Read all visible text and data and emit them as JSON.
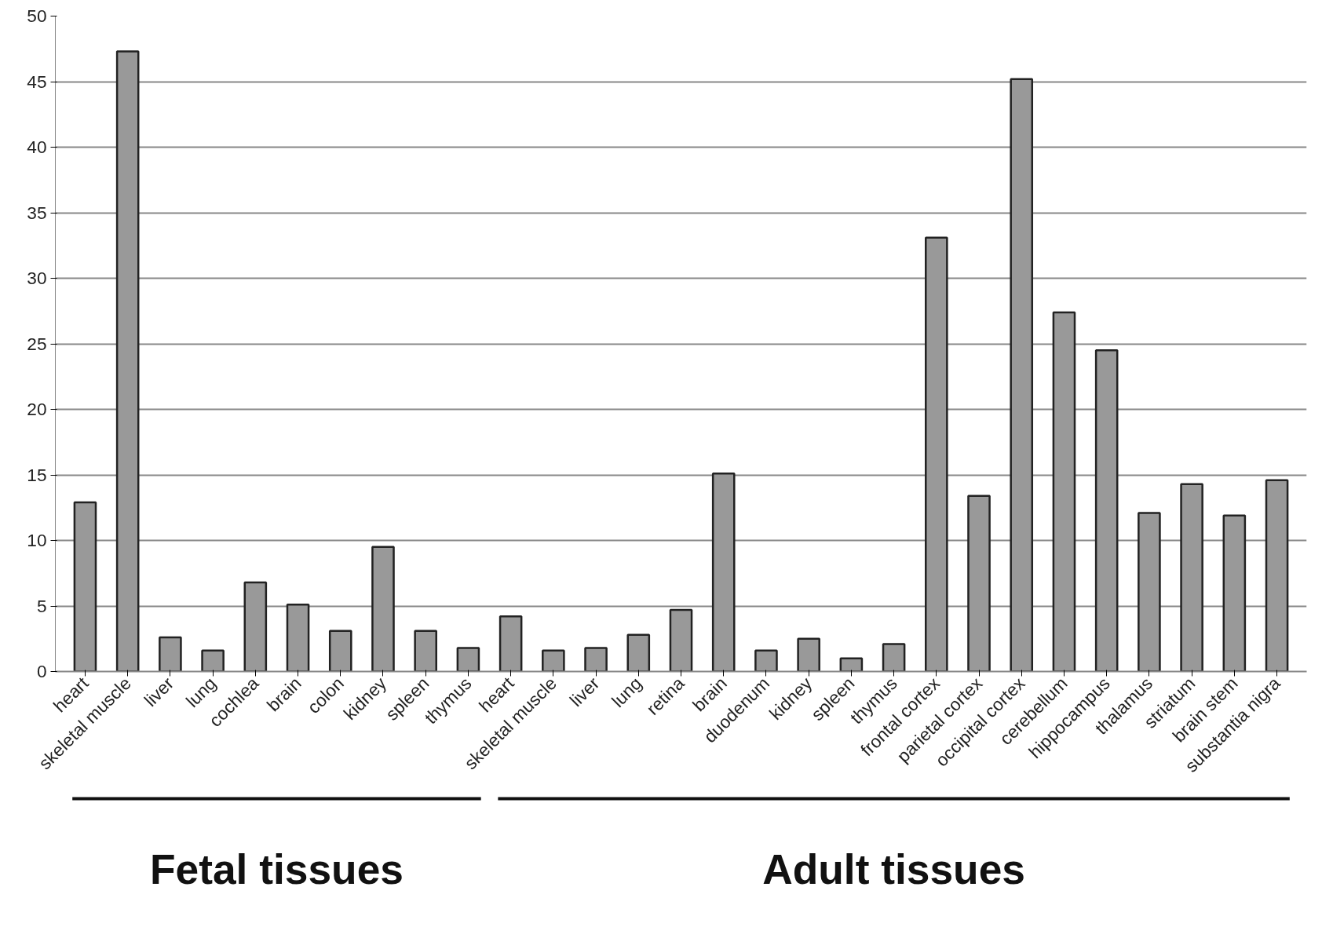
{
  "chart_data": {
    "type": "bar",
    "categories": [
      "heart",
      "skeletal muscle",
      "liver",
      "lung",
      "cochlea",
      "brain",
      "colon",
      "kidney",
      "spleen",
      "thymus",
      "heart",
      "skeletal muscle",
      "liver",
      "lung",
      "retina",
      "brain",
      "duodenum",
      "kidney",
      "spleen",
      "thymus",
      "frontal cortex",
      "parietal cortex",
      "occipital cortex",
      "cerebellum",
      "hippocampus",
      "thalamus",
      "striatum",
      "brain stem",
      "substantia nigra"
    ],
    "values": [
      12.9,
      47.3,
      2.6,
      1.6,
      6.8,
      5.1,
      3.1,
      9.5,
      3.1,
      1.8,
      4.2,
      1.6,
      1.8,
      2.8,
      4.7,
      15.1,
      1.6,
      2.5,
      1.0,
      2.1,
      33.1,
      13.4,
      45.2,
      27.4,
      24.5,
      12.1,
      14.3,
      11.9,
      14.6
    ],
    "color": "#999999",
    "ylim": [
      0,
      50
    ],
    "yticks": [
      0,
      5,
      10,
      15,
      20,
      25,
      30,
      35,
      40,
      45,
      50
    ],
    "grid": "y",
    "annotations": [
      "Fetal tissues",
      "Adult tissues"
    ]
  }
}
